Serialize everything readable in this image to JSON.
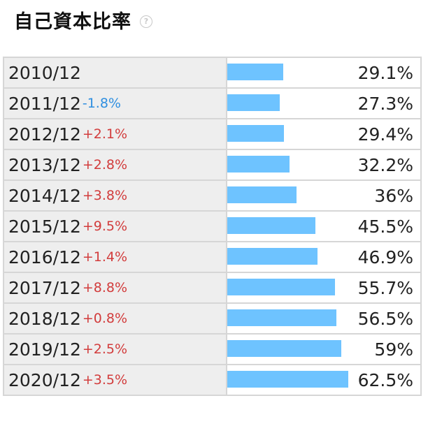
{
  "title": "自己資本比率",
  "icons": {
    "help": "question-circle-icon"
  },
  "colors": {
    "bar": "#6ec3ff",
    "increase": "#d23c3c",
    "decrease": "#2f8fe0",
    "row_background": "#eeeeee"
  },
  "chart_data": {
    "type": "bar",
    "title": "自己資本比率",
    "orientation": "horizontal",
    "value_unit": "%",
    "categories": [
      "2010/12",
      "2011/12",
      "2012/12",
      "2013/12",
      "2014/12",
      "2015/12",
      "2016/12",
      "2017/12",
      "2018/12",
      "2019/12",
      "2020/12"
    ],
    "values": [
      29.1,
      27.3,
      29.4,
      32.2,
      36,
      45.5,
      46.9,
      55.7,
      56.5,
      59,
      62.5
    ],
    "value_labels": [
      "29.1%",
      "27.3%",
      "29.4%",
      "32.2%",
      "36%",
      "45.5%",
      "46.9%",
      "55.7%",
      "56.5%",
      "59%",
      "62.5%"
    ],
    "change_labels": [
      "",
      "-1.8%",
      "+2.1%",
      "+2.8%",
      "+3.8%",
      "+9.5%",
      "+1.4%",
      "+8.8%",
      "+0.8%",
      "+2.5%",
      "+3.5%"
    ],
    "xlim": [
      0,
      100
    ]
  }
}
